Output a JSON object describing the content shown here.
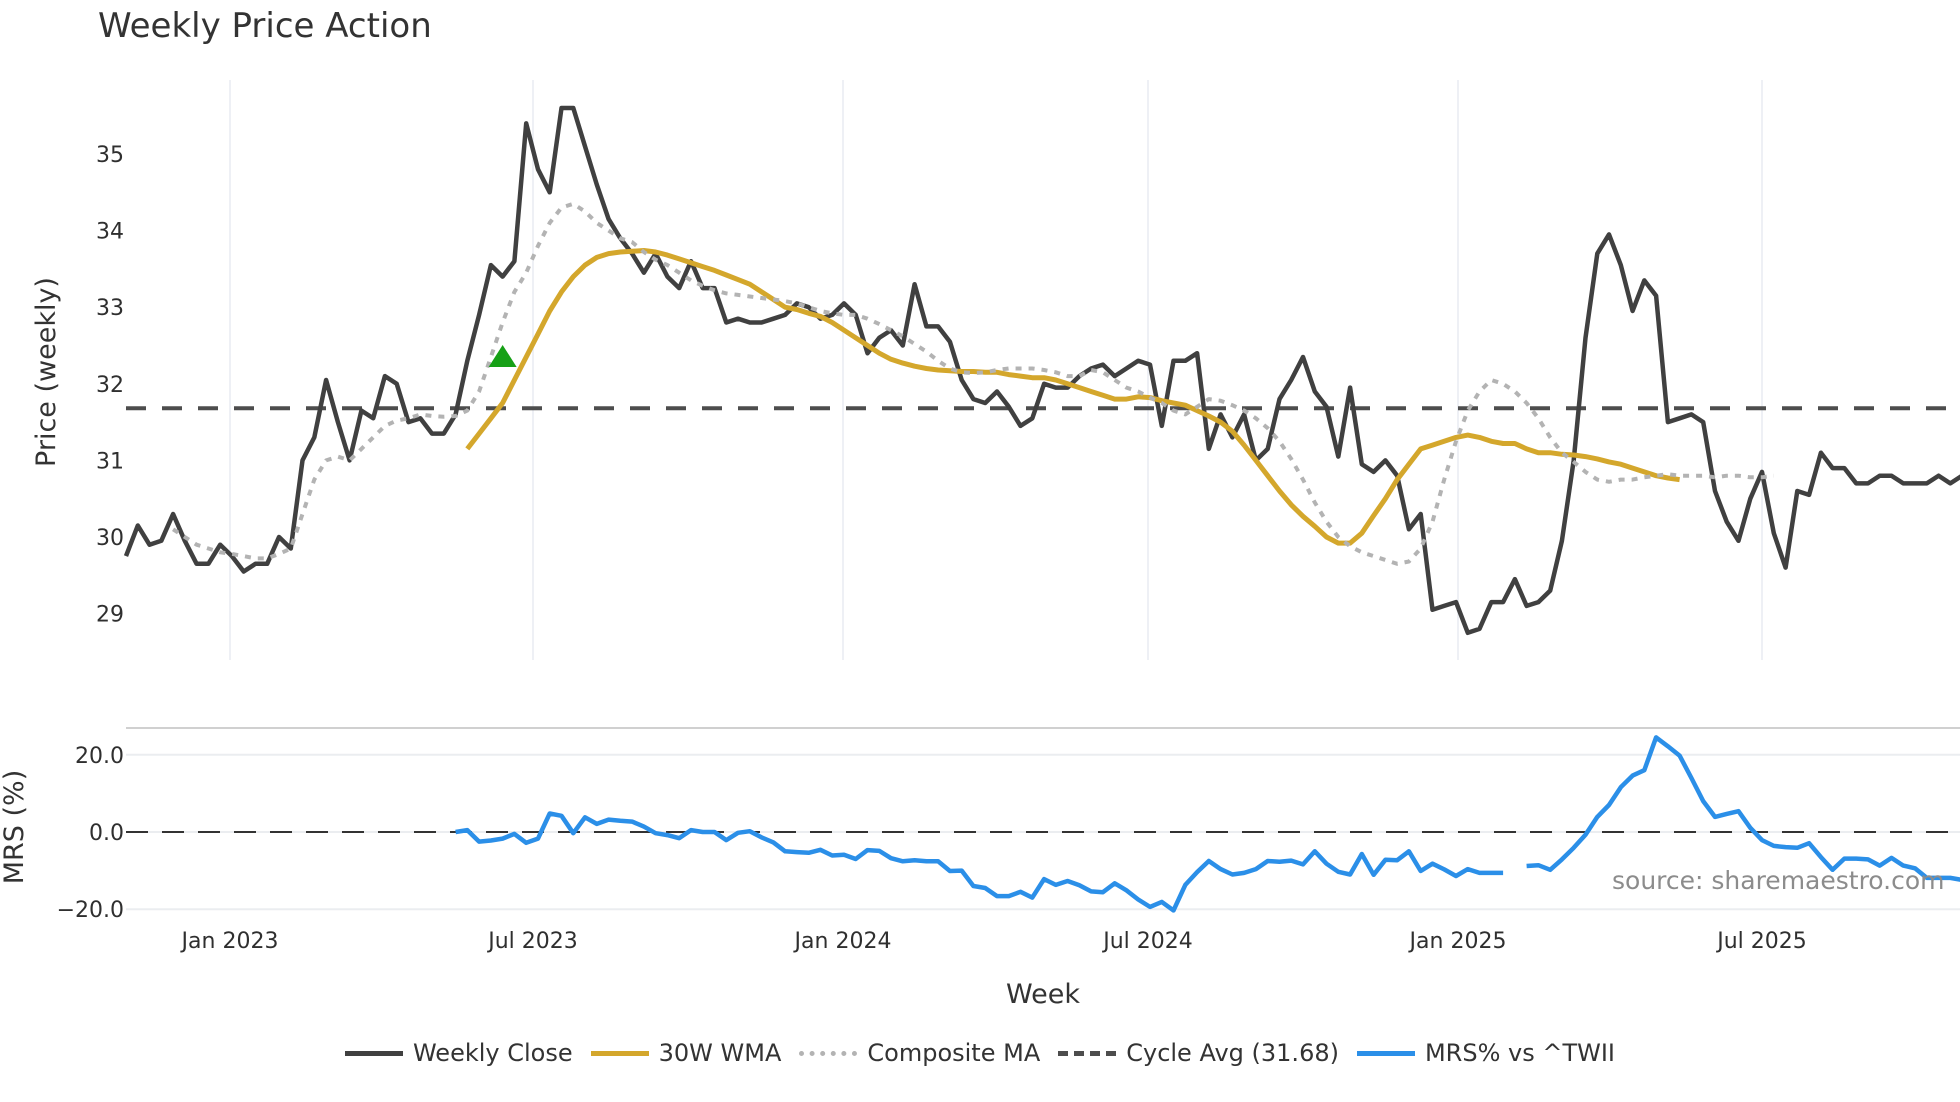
{
  "title": "Weekly Price Action",
  "source_note": "source: sharemaestro.com",
  "legend": [
    {
      "label": "Weekly Close",
      "color": "#404040",
      "style": "solid"
    },
    {
      "label": "30W WMA",
      "color": "#d4a72c",
      "style": "solid"
    },
    {
      "label": "Composite MA",
      "color": "#b3b3b3",
      "style": "dotted"
    },
    {
      "label": "Cycle Avg (31.68)",
      "color": "#4d4d4d",
      "style": "dashed"
    },
    {
      "label": "MRS% vs ^TWII",
      "color": "#2b8fe8",
      "style": "solid"
    }
  ],
  "chart_data": [
    {
      "type": "line",
      "title": "Weekly Price Action",
      "xlabel": "Week",
      "ylabel": "Price (weekly)",
      "ylim": [
        28.4,
        35.9
      ],
      "yticks": [
        29,
        30,
        31,
        32,
        33,
        34,
        35
      ],
      "xticks": [
        "Jan 2023",
        "Jul 2023",
        "Jan 2024",
        "Jul 2024",
        "Jan 2025",
        "Jul 2025"
      ],
      "grid": true,
      "x_start": "2022-11-07",
      "x_step": "1 week",
      "reference_line": {
        "name": "Cycle Avg (31.68)",
        "value": 31.68,
        "style": "dashed"
      },
      "marker": {
        "type": "triangle-up",
        "color": "#16a016",
        "week_index": 32,
        "value": 32.35
      },
      "series": [
        {
          "name": "Weekly Close",
          "color": "#404040",
          "values": [
            29.75,
            30.15,
            29.9,
            29.95,
            30.3,
            29.95,
            29.65,
            29.65,
            29.9,
            29.75,
            29.55,
            29.65,
            29.65,
            30.0,
            29.85,
            31.0,
            31.3,
            32.05,
            31.5,
            31.0,
            31.65,
            31.55,
            32.1,
            32.0,
            31.5,
            31.55,
            31.35,
            31.35,
            31.6,
            32.3,
            32.9,
            33.55,
            33.4,
            33.6,
            35.4,
            34.8,
            34.5,
            35.6,
            35.6,
            35.1,
            34.6,
            34.15,
            33.9,
            33.7,
            33.45,
            33.7,
            33.4,
            33.25,
            33.6,
            33.25,
            33.25,
            32.8,
            32.85,
            32.8,
            32.8,
            32.85,
            32.9,
            33.05,
            33.0,
            32.85,
            32.9,
            33.05,
            32.9,
            32.4,
            32.6,
            32.7,
            32.5,
            33.3,
            32.75,
            32.75,
            32.55,
            32.05,
            31.8,
            31.75,
            31.9,
            31.7,
            31.45,
            31.55,
            32.0,
            31.95,
            31.95,
            32.1,
            32.2,
            32.25,
            32.1,
            32.2,
            32.3,
            32.25,
            31.45,
            32.3,
            32.3,
            32.4,
            31.15,
            31.6,
            31.3,
            31.6,
            31.0,
            31.15,
            31.8,
            32.05,
            32.35,
            31.9,
            31.7,
            31.05,
            31.95,
            30.95,
            30.85,
            31.0,
            30.8,
            30.1,
            30.3,
            29.05,
            29.1,
            29.15,
            28.75,
            28.8,
            29.15,
            29.15,
            29.45,
            29.1,
            29.15,
            29.3,
            29.95,
            31.0,
            32.6,
            33.7,
            33.95,
            33.55,
            32.95,
            33.35,
            33.15,
            31.5,
            31.55,
            31.6,
            31.5,
            30.6,
            30.2,
            29.95,
            30.5,
            30.85,
            30.05,
            29.6,
            30.6,
            30.55,
            31.1,
            30.9,
            30.9,
            30.7,
            30.7,
            30.8,
            30.8,
            30.7,
            30.7,
            30.7,
            30.8,
            30.7,
            30.8
          ]
        },
        {
          "name": "30W WMA",
          "color": "#d4a72c",
          "start_index": 29,
          "values": [
            31.15,
            31.35,
            31.55,
            31.75,
            32.05,
            32.35,
            32.65,
            32.95,
            33.2,
            33.4,
            33.55,
            33.65,
            33.7,
            33.72,
            33.73,
            33.74,
            33.72,
            33.68,
            33.63,
            33.58,
            33.53,
            33.48,
            33.42,
            33.36,
            33.3,
            33.2,
            33.1,
            33.0,
            32.97,
            32.92,
            32.88,
            32.8,
            32.7,
            32.6,
            32.5,
            32.4,
            32.32,
            32.27,
            32.23,
            32.2,
            32.18,
            32.17,
            32.16,
            32.16,
            32.15,
            32.15,
            32.12,
            32.1,
            32.08,
            32.08,
            32.05,
            32.0,
            31.95,
            31.9,
            31.85,
            31.8,
            31.8,
            31.83,
            31.82,
            31.78,
            31.75,
            31.72,
            31.65,
            31.58,
            31.5,
            31.38,
            31.2,
            31.0,
            30.8,
            30.6,
            30.42,
            30.27,
            30.14,
            30.0,
            29.92,
            29.92,
            30.05,
            30.28,
            30.5,
            30.75,
            30.95,
            31.15,
            31.2,
            31.25,
            31.3,
            31.33,
            31.3,
            31.25,
            31.22,
            31.22,
            31.15,
            31.1,
            31.1,
            31.08,
            31.07,
            31.05,
            31.02,
            30.98,
            30.95,
            30.9,
            30.85,
            30.8,
            30.77,
            30.75
          ]
        },
        {
          "name": "Composite MA",
          "color": "#b3b3b3",
          "style": "dotted",
          "start_index": 4,
          "values": [
            30.1,
            30.0,
            29.9,
            29.85,
            29.8,
            29.78,
            29.75,
            29.72,
            29.72,
            29.78,
            29.85,
            30.3,
            30.75,
            31.0,
            31.05,
            31.0,
            31.15,
            31.3,
            31.45,
            31.52,
            31.55,
            31.6,
            31.58,
            31.57,
            31.58,
            31.65,
            31.9,
            32.35,
            32.8,
            33.2,
            33.45,
            33.8,
            34.1,
            34.3,
            34.35,
            34.25,
            34.1,
            34.0,
            33.9,
            33.85,
            33.72,
            33.62,
            33.55,
            33.45,
            33.35,
            33.28,
            33.22,
            33.18,
            33.16,
            33.14,
            33.12,
            33.1,
            33.08,
            33.05,
            33.0,
            32.95,
            32.92,
            32.9,
            32.9,
            32.85,
            32.78,
            32.7,
            32.62,
            32.52,
            32.42,
            32.3,
            32.2,
            32.15,
            32.14,
            32.15,
            32.18,
            32.2,
            32.2,
            32.2,
            32.18,
            32.15,
            32.1,
            32.1,
            32.18,
            32.15,
            32.05,
            31.95,
            31.9,
            31.82,
            31.75,
            31.65,
            31.6,
            31.7,
            31.8,
            31.78,
            31.72,
            31.65,
            31.55,
            31.42,
            31.25,
            31.02,
            30.75,
            30.45,
            30.2,
            30.0,
            29.88,
            29.8,
            29.75,
            29.7,
            29.65,
            29.68,
            29.85,
            30.2,
            30.75,
            31.25,
            31.65,
            31.9,
            32.05,
            32.0,
            31.9,
            31.75,
            31.55,
            31.3,
            31.1,
            30.98,
            30.85,
            30.75,
            30.72,
            30.75,
            30.75,
            30.78,
            30.8,
            30.82,
            30.8,
            30.8,
            30.8,
            30.78,
            30.8,
            30.8,
            30.78,
            30.78,
            30.8
          ]
        },
        {
          "name": "MRS% vs ^TWII",
          "color": "#2b8fe8",
          "panel": "lower",
          "ylabel": "MRS (%)",
          "ylim": [
            -22,
            28
          ],
          "yticks": [
            -20.0,
            0.0,
            20.0
          ],
          "zero_line": "dashed",
          "start_index": 28,
          "gap_after_index": 102,
          "values": [
            0.0,
            0.5,
            -2.5,
            -2.2,
            -1.7,
            -0.5,
            -2.8,
            -1.7,
            4.8,
            4.2,
            -0.3,
            3.8,
            2.1,
            3.2,
            2.9,
            2.7,
            1.4,
            -0.3,
            -0.8,
            -1.6,
            0.5,
            0.0,
            0.0,
            -2.1,
            -0.2,
            0.2,
            -1.4,
            -2.7,
            -5.0,
            -5.2,
            -5.4,
            -4.6,
            -6.1,
            -5.9,
            -7.0,
            -4.7,
            -4.9,
            -6.8,
            -7.6,
            -7.3,
            -7.6,
            -7.6,
            -10.1,
            -10.0,
            -14.0,
            -14.5,
            -16.6,
            -16.6,
            -15.5,
            -17.0,
            -12.2,
            -13.7,
            -12.7,
            -13.8,
            -15.4,
            -15.6,
            -13.3,
            -15.1,
            -17.5,
            -19.4,
            -18.1,
            -20.3,
            -13.7,
            -10.4,
            -7.5,
            -9.6,
            -11.0,
            -10.6,
            -9.6,
            -7.5,
            -7.7,
            -7.4,
            -8.4,
            -5.0,
            -8.2,
            -10.3,
            -11.0,
            -5.7,
            -11.1,
            -7.2,
            -7.3,
            -5.0,
            -10.1,
            -8.2,
            -9.7,
            -11.4,
            -9.6,
            -10.6,
            -10.6,
            -10.6,
            null,
            -8.8,
            -8.6,
            -9.8,
            -7.1,
            -4.1,
            -0.7,
            3.9,
            7.0,
            11.6,
            14.6,
            16.0,
            24.5,
            22.2,
            19.8,
            14.0,
            8.0,
            3.9,
            4.7,
            5.4,
            1.1,
            -2.1,
            -3.6,
            -3.9,
            -4.1,
            -2.9,
            -6.5,
            -9.8,
            -6.9,
            -6.9,
            -7.1,
            -8.7,
            -6.7,
            -8.7,
            -9.4,
            -11.9,
            -11.9,
            -11.9,
            -12.4,
            -15.5,
            -16.1,
            -15.5,
            -16.3,
            -16.3
          ]
        }
      ]
    }
  ]
}
